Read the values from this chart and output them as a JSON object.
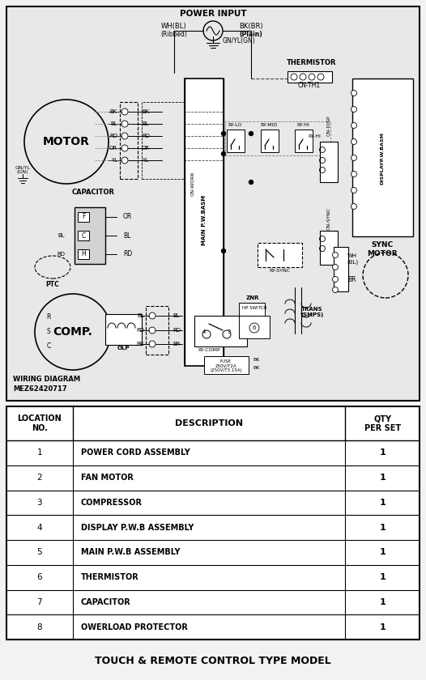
{
  "bg_color": "#f2f2f2",
  "diagram_bg": "#e8e8e8",
  "white": "#ffffff",
  "black": "#000000",
  "figsize": [
    5.26,
    8.4
  ],
  "dpi": 100,
  "table_rows": [
    {
      "no": "1",
      "desc": "POWER CORD ASSEMBLY",
      "qty": "1"
    },
    {
      "no": "2",
      "desc": "FAN MOTOR",
      "qty": "1"
    },
    {
      "no": "3",
      "desc": "COMPRESSOR",
      "qty": "1"
    },
    {
      "no": "4",
      "desc": "DISPLAY P.W.B ASSEMBLY",
      "qty": "1"
    },
    {
      "no": "5",
      "desc": "MAIN P.W.B ASSEMBLY",
      "qty": "1"
    },
    {
      "no": "6",
      "desc": "THERMISTOR",
      "qty": "1"
    },
    {
      "no": "7",
      "desc": "CAPACITOR",
      "qty": "1"
    },
    {
      "no": "8",
      "desc": "OWERLOAD PROTECTOR",
      "qty": "1"
    }
  ],
  "col_header_loc": "LOCATION\nNO.",
  "col_header_desc": "DESCRIPTION",
  "col_header_qty": "QTY\nPER SET",
  "footer_text": "TOUCH & REMOTE CONTROL TYPE MODEL",
  "diagram_label_line1": "MEZ62420717",
  "diagram_label_line2": "WIRING DIAGRAM",
  "power_input": "POWER INPUT",
  "wh_bl": "WH(BL)",
  "bk_br": "BK(BR)",
  "ribbed": "(Ribbed)",
  "plain": "(Plain)",
  "gnyl_gn": "GN/YL(GN)",
  "thermistor": "THERMISTOR",
  "cn_th1": "CN-TH1",
  "motor": "MOTOR",
  "capacitor": "CAPACITOR",
  "comp": "COMP.",
  "ptc": "PTC",
  "olp": "OLP",
  "sync_motor": "SYNC\nMOTOR",
  "display_pwb": "DISPLAYP.W.BASM",
  "main_pwb": "MAIN P.W.BASM",
  "ry_lo": "RY-LO",
  "ry_mid": "RY-MID",
  "ry_hi": "RY-HI",
  "ry_sync": "RY-SYNC",
  "ry_comp": "RY-COMP",
  "cn_work": "CN-WORK",
  "cn_disp": "CN-DISP",
  "cn_sync": "CN-SYNC",
  "znr": "ZNR",
  "trans": "TRANS\n(SMPS)",
  "fuse": "FUSE\n250V/T2A\n(250V/T3.15A)",
  "gnyl_gn2": "GN/YL\n(GN)",
  "wh_bl2": "WH\n(BL)",
  "br": "BR",
  "bk": "BK",
  "bl": "BL",
  "rd": "RD",
  "or": "OR",
  "yl": "YL",
  "motor_wires": [
    "BK",
    "BL",
    "RD",
    "OR",
    "YL"
  ],
  "comp_wires": [
    "BL",
    "RD",
    "BR"
  ]
}
